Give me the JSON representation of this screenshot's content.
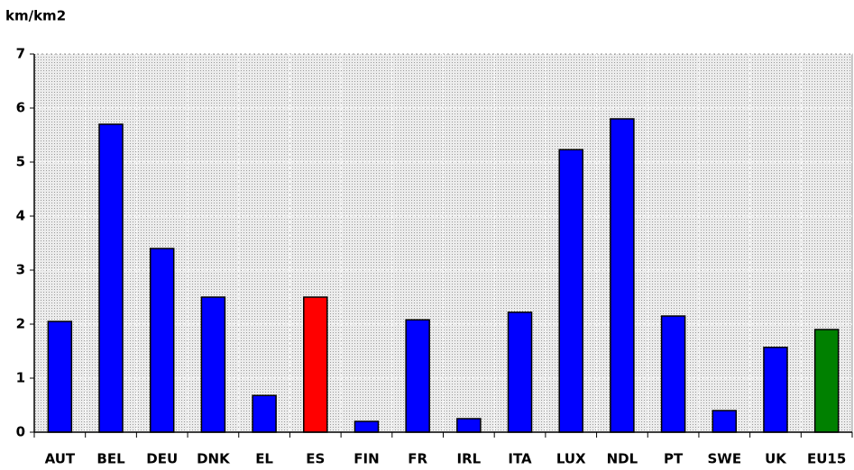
{
  "chart_data": {
    "type": "bar",
    "y_label": "km/km2",
    "categories": [
      "AUT",
      "BEL",
      "DEU",
      "DNK",
      "EL",
      "ES",
      "FIN",
      "FR",
      "IRL",
      "ITA",
      "LUX",
      "NDL",
      "PT",
      "SWE",
      "UK",
      "EU15"
    ],
    "values": [
      2.05,
      5.7,
      3.4,
      2.5,
      0.68,
      2.5,
      0.2,
      2.08,
      0.25,
      2.22,
      5.23,
      5.8,
      2.15,
      0.4,
      1.57,
      1.9
    ],
    "colors": [
      "#0000ff",
      "#0000ff",
      "#0000ff",
      "#0000ff",
      "#0000ff",
      "#ff0000",
      "#0000ff",
      "#0000ff",
      "#0000ff",
      "#0000ff",
      "#0000ff",
      "#0000ff",
      "#0000ff",
      "#0000ff",
      "#0000ff",
      "#008000"
    ],
    "ylim": [
      0,
      7
    ],
    "yticks": [
      0,
      1,
      2,
      3,
      4,
      5,
      6,
      7
    ],
    "grid": true
  }
}
